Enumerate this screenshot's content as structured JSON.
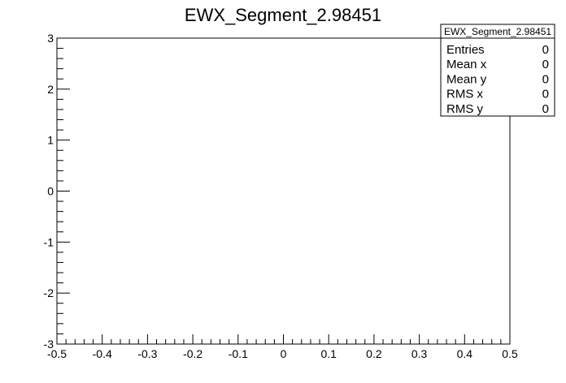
{
  "chart_data": {
    "type": "scatter",
    "title": "EWX_Segment_2.98451",
    "xlabel": "",
    "ylabel": "",
    "xlim": [
      -0.5,
      0.5
    ],
    "ylim": [
      -3,
      3
    ],
    "x_ticks": [
      -0.5,
      -0.4,
      -0.3,
      -0.2,
      -0.1,
      0,
      0.1,
      0.2,
      0.3,
      0.4,
      0.5
    ],
    "x_tick_labels": [
      "-0.5",
      "-0.4",
      "-0.3",
      "-0.2",
      "-0.1",
      "0",
      "0.1",
      "0.2",
      "0.3",
      "0.4",
      "0.5"
    ],
    "y_ticks": [
      -3,
      -2,
      -1,
      0,
      1,
      2,
      3
    ],
    "y_tick_labels": [
      "-3",
      "-2",
      "-1",
      "0",
      "1",
      "2",
      "3"
    ],
    "grid": false,
    "points": [],
    "stats_box": {
      "title": "EWX_Segment_2.98451",
      "placement": "top-right",
      "rows": [
        {
          "label": "Entries",
          "value": "0"
        },
        {
          "label": "Mean x",
          "value": "0"
        },
        {
          "label": "Mean y",
          "value": "0"
        },
        {
          "label": "RMS x",
          "value": "0"
        },
        {
          "label": "RMS y",
          "value": "0"
        }
      ]
    }
  }
}
